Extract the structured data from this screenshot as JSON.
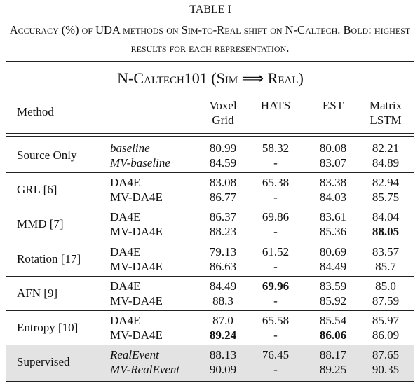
{
  "caption": {
    "label": "TABLE I",
    "text": "Accuracy (%) of UDA methods on Sim-to-Real shift on N-Caltech. Bold: highest results for each representation."
  },
  "table": {
    "title": "N-Caltech101 (Sim ⟹ Real)",
    "header": {
      "method": "Method",
      "columns": [
        "Voxel Grid",
        "HATS",
        "EST",
        "Matrix LSTM"
      ]
    },
    "groups": [
      {
        "method": "Source Only",
        "italic": true,
        "rows": [
          {
            "variant": "baseline",
            "values": [
              "80.99",
              "58.32",
              "80.08",
              "82.21"
            ]
          },
          {
            "variant": "MV-baseline",
            "values": [
              "84.59",
              "-",
              "83.07",
              "84.89"
            ]
          }
        ]
      },
      {
        "method": "GRL [6]",
        "rows": [
          {
            "variant": "DA4E",
            "values": [
              "83.08",
              "65.38",
              "83.38",
              "82.94"
            ]
          },
          {
            "variant": "MV-DA4E",
            "values": [
              "86.77",
              "-",
              "84.03",
              "85.75"
            ]
          }
        ]
      },
      {
        "method": "MMD [7]",
        "rows": [
          {
            "variant": "DA4E",
            "values": [
              "86.37",
              "69.86",
              "83.61",
              "84.04"
            ]
          },
          {
            "variant": "MV-DA4E",
            "values": [
              "88.23",
              "-",
              "85.36",
              {
                "text": "88.05",
                "bold": true
              }
            ]
          }
        ]
      },
      {
        "method": "Rotation [17]",
        "rows": [
          {
            "variant": "DA4E",
            "values": [
              "79.13",
              "61.52",
              "80.69",
              "83.57"
            ]
          },
          {
            "variant": "MV-DA4E",
            "values": [
              "86.63",
              "-",
              "84.49",
              "85.7"
            ]
          }
        ]
      },
      {
        "method": "AFN [9]",
        "rows": [
          {
            "variant": "DA4E",
            "values": [
              "84.49",
              {
                "text": "69.96",
                "bold": true
              },
              "83.59",
              "85.0"
            ]
          },
          {
            "variant": "MV-DA4E",
            "values": [
              "88.3",
              "-",
              "85.92",
              "87.59"
            ]
          }
        ]
      },
      {
        "method": "Entropy [10]",
        "rows": [
          {
            "variant": "DA4E",
            "values": [
              "87.0",
              "65.58",
              "85.54",
              "85.97"
            ]
          },
          {
            "variant": "MV-DA4E",
            "values": [
              {
                "text": "89.24",
                "bold": true
              },
              "-",
              {
                "text": "86.06",
                "bold": true
              },
              "86.09"
            ]
          }
        ]
      },
      {
        "method": "Supervised",
        "italic": true,
        "shaded": true,
        "rows": [
          {
            "variant": "RealEvent",
            "values": [
              "88.13",
              "76.45",
              "88.17",
              "87.65"
            ]
          },
          {
            "variant": "MV-RealEvent",
            "values": [
              "90.09",
              "-",
              "89.25",
              "90.35"
            ]
          }
        ]
      }
    ]
  }
}
